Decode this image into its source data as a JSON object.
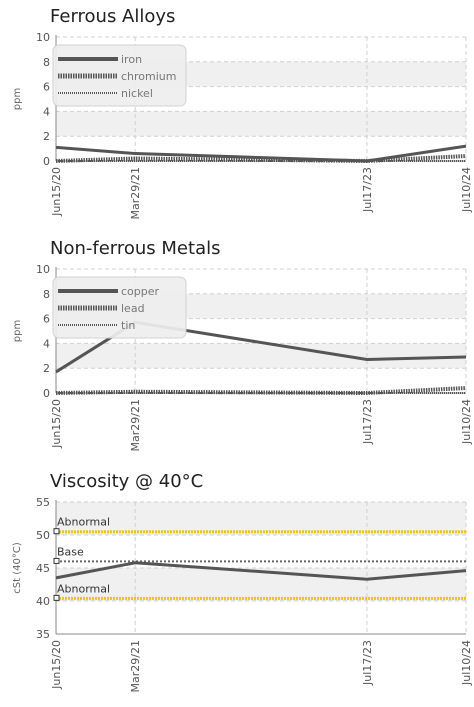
{
  "colors": {
    "series": "#555555",
    "reference_abnormal": "#f0c419",
    "reference_base": "#666666",
    "band": "#f0f0f0",
    "grid": "#d0d0d0"
  },
  "chart_data": [
    {
      "type": "line",
      "title": "Ferrous Alloys",
      "ylabel": "ppm",
      "xlabel": "",
      "categories": [
        "Jun15/20",
        "Mar29/21",
        "Jul17/23",
        "Jul10/24"
      ],
      "x_days": [
        0,
        287,
        1127,
        1486
      ],
      "ylim": [
        0,
        10
      ],
      "yticks": [
        0,
        2,
        4,
        6,
        8,
        10
      ],
      "grid": true,
      "legend": "top-left",
      "series": [
        {
          "name": "iron",
          "style": "solid",
          "values": [
            1.1,
            0.6,
            0.0,
            1.2
          ]
        },
        {
          "name": "chromium",
          "style": "dotted",
          "values": [
            0.0,
            0.2,
            0.0,
            0.4
          ]
        },
        {
          "name": "nickel",
          "style": "dashed",
          "values": [
            0.0,
            0.0,
            0.0,
            0.0
          ]
        }
      ]
    },
    {
      "type": "line",
      "title": "Non-ferrous Metals",
      "ylabel": "ppm",
      "xlabel": "",
      "categories": [
        "Jun15/20",
        "Mar29/21",
        "Jul17/23",
        "Jul10/24"
      ],
      "x_days": [
        0,
        287,
        1127,
        1486
      ],
      "ylim": [
        0,
        10
      ],
      "yticks": [
        0,
        2,
        4,
        6,
        8,
        10
      ],
      "grid": true,
      "legend": "top-left",
      "series": [
        {
          "name": "copper",
          "style": "solid",
          "values": [
            1.7,
            5.7,
            2.7,
            2.9
          ]
        },
        {
          "name": "lead",
          "style": "dotted",
          "values": [
            0.0,
            0.1,
            0.0,
            0.4
          ]
        },
        {
          "name": "tin",
          "style": "dashed",
          "values": [
            0.0,
            0.0,
            0.0,
            0.0
          ]
        }
      ]
    },
    {
      "type": "line",
      "title": "Viscosity @ 40°C",
      "ylabel": "cSt (40°C)",
      "xlabel": "",
      "categories": [
        "Jun15/20",
        "Mar29/21",
        "Jul17/23",
        "Jul10/24"
      ],
      "x_days": [
        0,
        287,
        1127,
        1486
      ],
      "ylim": [
        35,
        55
      ],
      "yticks": [
        35,
        40,
        45,
        50,
        55
      ],
      "grid": true,
      "series": [
        {
          "name": "",
          "style": "solid",
          "values": [
            43.5,
            45.8,
            43.3,
            44.6
          ]
        }
      ],
      "reference_lines": [
        {
          "label": "Abnormal",
          "value": 50.5,
          "kind": "abnormal"
        },
        {
          "label": "Base",
          "value": 46.0,
          "kind": "base"
        },
        {
          "label": "Abnormal",
          "value": 40.4,
          "kind": "abnormal"
        }
      ]
    }
  ]
}
